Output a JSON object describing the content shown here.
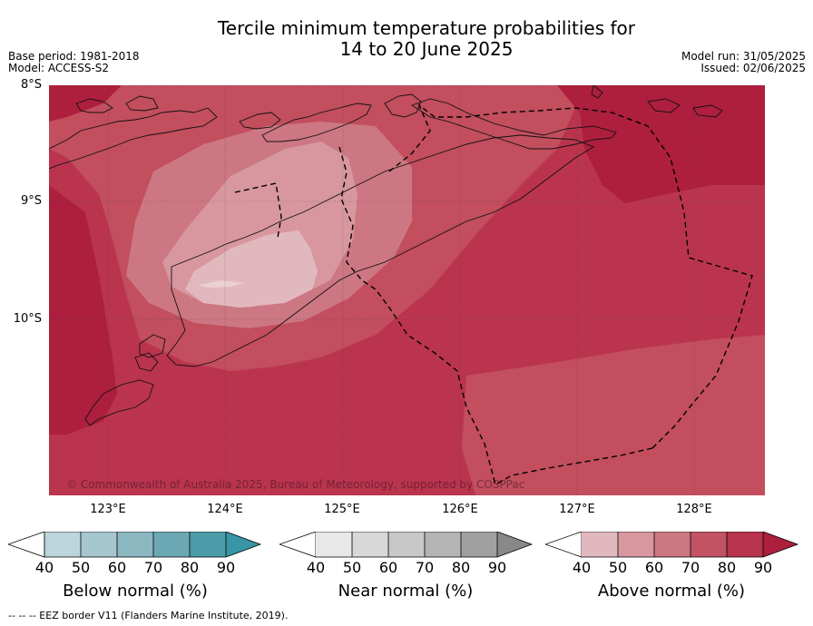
{
  "title_line1": "Tercile minimum temperature probabilities for",
  "title_line2": "14 to 20 June 2025",
  "base_period": "Base period: 1981-2018",
  "model": "Model: ACCESS-S2",
  "model_run": "Model run: 31/05/2025",
  "issued": "Issued: 02/06/2025",
  "lat_labels": [
    "8°S",
    "9°S",
    "10°S"
  ],
  "lon_labels": [
    "123°E",
    "124°E",
    "125°E",
    "126°E",
    "127°E",
    "128°E"
  ],
  "copyright": "© Commonwealth of Australia 2025, Bureau of Meteorology, supported by COSPPac",
  "colorbars": [
    {
      "title": "Below normal (%)",
      "ticks": [
        "40",
        "50",
        "60",
        "70",
        "80",
        "90"
      ],
      "colors": [
        "#bcd4db",
        "#a6c7cf",
        "#8bb7c1",
        "#6ca8b4",
        "#4c9ba9",
        "#3795a5"
      ]
    },
    {
      "title": "Near normal (%)",
      "ticks": [
        "40",
        "50",
        "60",
        "70",
        "80",
        "90"
      ],
      "colors": [
        "#e8e8e8",
        "#d8d8d8",
        "#c8c8c8",
        "#b4b4b4",
        "#a0a0a0",
        "#888888"
      ]
    },
    {
      "title": "Above normal (%)",
      "ticks": [
        "40",
        "50",
        "60",
        "70",
        "80",
        "90"
      ],
      "colors": [
        "#e2b8bf",
        "#d8979f",
        "#cc7781",
        "#c15362",
        "#b8334c",
        "#ad1f3d"
      ]
    }
  ],
  "eez_note": "--  --  -- EEZ border V11 (Flanders Marine Institute, 2019).",
  "map_colors": {
    "above_90": "#ad1f3d",
    "above_80": "#ba344e",
    "above_70": "#c24e5e",
    "above_60": "#cc7781",
    "above_50": "#d8979f",
    "above_40": "#e2b8bf"
  }
}
